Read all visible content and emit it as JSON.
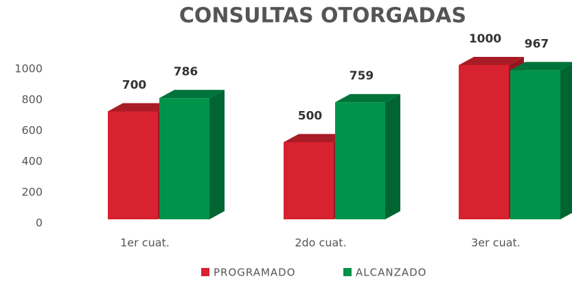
{
  "chart_data": {
    "type": "bar",
    "title": "CONSULTAS OTORGADAS",
    "categories": [
      "1er cuat.",
      "2do cuat.",
      "3er cuat."
    ],
    "series": [
      {
        "name": "PROGRAMADO",
        "color": "#d9222f",
        "values": [
          700,
          500,
          1000
        ]
      },
      {
        "name": "ALCANZADO",
        "color": "#00944a",
        "values": [
          786,
          759,
          967
        ]
      }
    ],
    "ylim": [
      0,
      1000
    ],
    "yticks": [
      0,
      200,
      400,
      600,
      800,
      1000
    ],
    "grid": false,
    "legend": "bottom"
  }
}
